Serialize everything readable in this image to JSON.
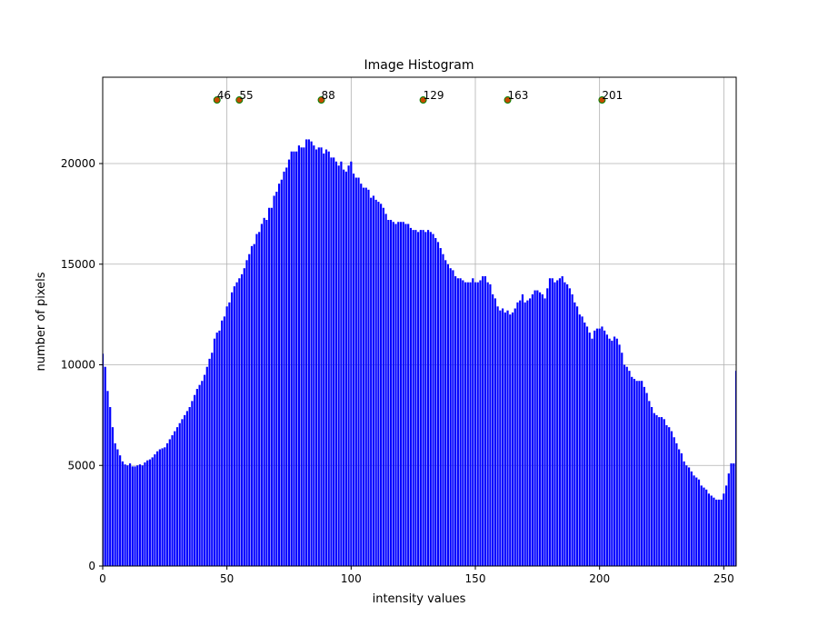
{
  "chart_data": {
    "type": "bar",
    "title": "Image Histogram",
    "x_label": "intensity values",
    "y_label": "number of pixels",
    "x": [
      0,
      1,
      2,
      3,
      4,
      5,
      6,
      7,
      8,
      9,
      10,
      11,
      12,
      13,
      14,
      15,
      16,
      17,
      18,
      19,
      20,
      21,
      22,
      23,
      24,
      25,
      26,
      27,
      28,
      29,
      30,
      31,
      32,
      33,
      34,
      35,
      36,
      37,
      38,
      39,
      40,
      41,
      42,
      43,
      44,
      45,
      46,
      47,
      48,
      49,
      50,
      51,
      52,
      53,
      54,
      55,
      56,
      57,
      58,
      59,
      60,
      61,
      62,
      63,
      64,
      65,
      66,
      67,
      68,
      69,
      70,
      71,
      72,
      73,
      74,
      75,
      76,
      77,
      78,
      79,
      80,
      81,
      82,
      83,
      84,
      85,
      86,
      87,
      88,
      89,
      90,
      91,
      92,
      93,
      94,
      95,
      96,
      97,
      98,
      99,
      100,
      101,
      102,
      103,
      104,
      105,
      106,
      107,
      108,
      109,
      110,
      111,
      112,
      113,
      114,
      115,
      116,
      117,
      118,
      119,
      120,
      121,
      122,
      123,
      124,
      125,
      126,
      127,
      128,
      129,
      130,
      131,
      132,
      133,
      134,
      135,
      136,
      137,
      138,
      139,
      140,
      141,
      142,
      143,
      144,
      145,
      146,
      147,
      148,
      149,
      150,
      151,
      152,
      153,
      154,
      155,
      156,
      157,
      158,
      159,
      160,
      161,
      162,
      163,
      164,
      165,
      166,
      167,
      168,
      169,
      170,
      171,
      172,
      173,
      174,
      175,
      176,
      177,
      178,
      179,
      180,
      181,
      182,
      183,
      184,
      185,
      186,
      187,
      188,
      189,
      190,
      191,
      192,
      193,
      194,
      195,
      196,
      197,
      198,
      199,
      200,
      201,
      202,
      203,
      204,
      205,
      206,
      207,
      208,
      209,
      210,
      211,
      212,
      213,
      214,
      215,
      216,
      217,
      218,
      219,
      220,
      221,
      222,
      223,
      224,
      225,
      226,
      227,
      228,
      229,
      230,
      231,
      232,
      233,
      234,
      235,
      236,
      237,
      238,
      239,
      240,
      241,
      242,
      243,
      244,
      245,
      246,
      247,
      248,
      249,
      250,
      251,
      252,
      253,
      254,
      255
    ],
    "values": [
      10550,
      9900,
      8700,
      7900,
      6900,
      6100,
      5800,
      5500,
      5200,
      5050,
      5000,
      5100,
      4950,
      4950,
      5000,
      5050,
      5000,
      5150,
      5250,
      5300,
      5400,
      5550,
      5700,
      5800,
      5850,
      5900,
      6100,
      6300,
      6500,
      6700,
      6900,
      7100,
      7300,
      7500,
      7700,
      7900,
      8200,
      8500,
      8800,
      9000,
      9200,
      9500,
      9900,
      10300,
      10600,
      11300,
      11600,
      11700,
      12200,
      12400,
      12900,
      13100,
      13600,
      13900,
      14100,
      14300,
      14500,
      14800,
      15200,
      15500,
      15900,
      16000,
      16500,
      16600,
      17000,
      17300,
      17200,
      17800,
      17800,
      18400,
      18600,
      19000,
      19200,
      19600,
      19800,
      20200,
      20600,
      20600,
      20600,
      20900,
      20800,
      20800,
      21200,
      21200,
      21100,
      20900,
      20700,
      20800,
      20800,
      20500,
      20700,
      20600,
      20300,
      20300,
      20100,
      19900,
      20100,
      19700,
      19600,
      19900,
      20100,
      19500,
      19300,
      19300,
      19000,
      18800,
      18800,
      18700,
      18300,
      18400,
      18200,
      18100,
      18000,
      17800,
      17500,
      17200,
      17200,
      17100,
      17000,
      17100,
      17100,
      17100,
      17000,
      17000,
      16800,
      16700,
      16700,
      16600,
      16700,
      16700,
      16600,
      16700,
      16600,
      16500,
      16300,
      16100,
      15800,
      15500,
      15200,
      15000,
      14800,
      14700,
      14400,
      14300,
      14300,
      14200,
      14100,
      14100,
      14100,
      14300,
      14100,
      14100,
      14200,
      14400,
      14400,
      14100,
      14000,
      13500,
      13300,
      12900,
      12700,
      12800,
      12600,
      12700,
      12500,
      12600,
      12800,
      13100,
      13200,
      13500,
      13100,
      13200,
      13300,
      13500,
      13700,
      13700,
      13600,
      13500,
      13300,
      13800,
      14300,
      14300,
      14100,
      14200,
      14300,
      14400,
      14100,
      14000,
      13800,
      13500,
      13100,
      12900,
      12500,
      12400,
      12100,
      11900,
      11600,
      11300,
      11700,
      11800,
      11800,
      11900,
      11700,
      11500,
      11300,
      11200,
      11400,
      11300,
      11000,
      10600,
      10000,
      9900,
      9700,
      9400,
      9300,
      9200,
      9200,
      9200,
      8900,
      8600,
      8200,
      7900,
      7600,
      7500,
      7400,
      7400,
      7300,
      7000,
      6900,
      6700,
      6400,
      6100,
      5800,
      5600,
      5200,
      5000,
      4900,
      4700,
      4500,
      4400,
      4300,
      4000,
      3900,
      3800,
      3600,
      3500,
      3400,
      3300,
      3300,
      3300,
      3600,
      4000,
      4600,
      5100,
      5100,
      9700
    ],
    "color": "#0000ff",
    "points": {
      "x": [
        46,
        55,
        88,
        129,
        163,
        201
      ],
      "y": [
        23160,
        23160,
        23160,
        23160,
        23160,
        23160
      ],
      "color": "#c84a00",
      "edge_color": "#008000"
    },
    "xlim": [
      0,
      255
    ],
    "ylim": [
      0,
      24290
    ],
    "xticks": [
      0,
      50,
      100,
      150,
      200,
      250
    ],
    "yticks": [
      0,
      5000,
      10000,
      15000,
      20000
    ],
    "grid": true
  }
}
